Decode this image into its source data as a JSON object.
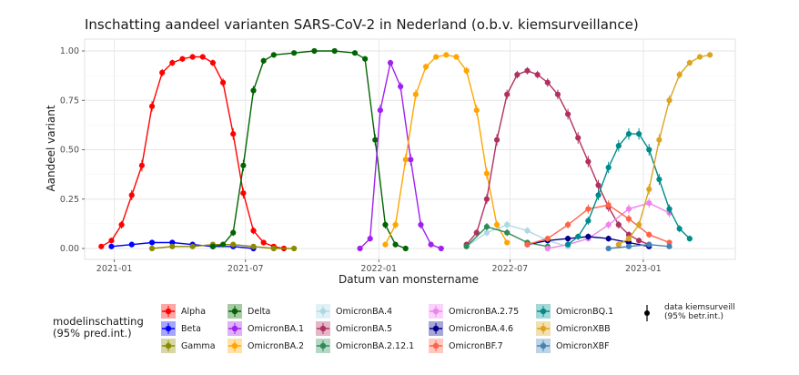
{
  "chart_data": {
    "type": "scatter",
    "title": "Inschatting aandeel varianten SARS-CoV-2 in Nederland (o.b.v. kiemsurveillance)",
    "xlabel": "Datum van monstername",
    "ylabel": "Aandeel variant",
    "x_ticks": [
      "2021-01",
      "2021-07",
      "2022-01",
      "2022-07",
      "2023-01"
    ],
    "y_ticks": [
      "0.00",
      "0.25",
      "0.50",
      "0.75",
      "1.00"
    ],
    "ylim": [
      0,
      1
    ],
    "grid": true,
    "legend_title": "modelinschatting\n(95% pred.int.)",
    "observed_label": "data kiemsurveill\n(95% betr.int.)",
    "legend_placement": "bottom",
    "series": [
      {
        "name": "Alpha",
        "color": "#ff0000",
        "x": [
          "2020-12-14",
          "2020-12-28",
          "2021-01-11",
          "2021-01-25",
          "2021-02-08",
          "2021-02-22",
          "2021-03-08",
          "2021-03-22",
          "2021-04-05",
          "2021-04-19",
          "2021-05-03",
          "2021-05-17",
          "2021-05-31",
          "2021-06-14",
          "2021-06-28",
          "2021-07-12",
          "2021-07-26",
          "2021-08-09",
          "2021-08-23"
        ],
        "values": [
          0.01,
          0.04,
          0.12,
          0.27,
          0.42,
          0.72,
          0.89,
          0.94,
          0.96,
          0.97,
          0.97,
          0.94,
          0.84,
          0.58,
          0.28,
          0.09,
          0.03,
          0.01,
          0.0
        ]
      },
      {
        "name": "Beta",
        "color": "#0000ff",
        "x": [
          "2020-12-28",
          "2021-01-25",
          "2021-02-22",
          "2021-03-22",
          "2021-04-19",
          "2021-05-17",
          "2021-06-14",
          "2021-07-12"
        ],
        "values": [
          0.01,
          0.02,
          0.03,
          0.03,
          0.02,
          0.01,
          0.01,
          0.0
        ]
      },
      {
        "name": "Gamma",
        "color": "#8b8b00",
        "x": [
          "2021-02-22",
          "2021-03-22",
          "2021-04-19",
          "2021-05-17",
          "2021-06-14",
          "2021-07-12",
          "2021-08-09",
          "2021-09-06"
        ],
        "values": [
          0.0,
          0.01,
          0.01,
          0.02,
          0.02,
          0.01,
          0.0,
          0.0
        ]
      },
      {
        "name": "Delta",
        "color": "#006400",
        "x": [
          "2021-05-17",
          "2021-05-31",
          "2021-06-14",
          "2021-06-28",
          "2021-07-12",
          "2021-07-26",
          "2021-08-09",
          "2021-09-06",
          "2021-10-04",
          "2021-11-01",
          "2021-11-29",
          "2021-12-13",
          "2021-12-27",
          "2022-01-10",
          "2022-01-24",
          "2022-02-07"
        ],
        "values": [
          0.01,
          0.02,
          0.08,
          0.42,
          0.8,
          0.95,
          0.98,
          0.99,
          1.0,
          1.0,
          0.99,
          0.96,
          0.55,
          0.12,
          0.02,
          0.0
        ]
      },
      {
        "name": "OmicronBA.1",
        "color": "#a020f0",
        "x": [
          "2021-12-06",
          "2021-12-20",
          "2022-01-03",
          "2022-01-17",
          "2022-01-31",
          "2022-02-14",
          "2022-02-28",
          "2022-03-14",
          "2022-03-28"
        ],
        "values": [
          0.0,
          0.05,
          0.7,
          0.94,
          0.82,
          0.45,
          0.12,
          0.02,
          0.0
        ]
      },
      {
        "name": "OmicronBA.2",
        "color": "#ffa500",
        "x": [
          "2022-01-10",
          "2022-01-24",
          "2022-02-07",
          "2022-02-21",
          "2022-03-07",
          "2022-03-21",
          "2022-04-04",
          "2022-04-18",
          "2022-05-02",
          "2022-05-16",
          "2022-05-30",
          "2022-06-13",
          "2022-06-27"
        ],
        "values": [
          0.02,
          0.12,
          0.45,
          0.78,
          0.92,
          0.97,
          0.98,
          0.97,
          0.9,
          0.7,
          0.38,
          0.12,
          0.03
        ]
      },
      {
        "name": "OmicronBA.4",
        "color": "#add8e6",
        "x": [
          "2022-05-02",
          "2022-05-30",
          "2022-06-27",
          "2022-07-25",
          "2022-08-22",
          "2022-09-19"
        ],
        "values": [
          0.01,
          0.08,
          0.12,
          0.09,
          0.04,
          0.01
        ]
      },
      {
        "name": "OmicronBA.5",
        "color": "#b03060",
        "x": [
          "2022-05-02",
          "2022-05-16",
          "2022-05-30",
          "2022-06-13",
          "2022-06-27",
          "2022-07-11",
          "2022-07-25",
          "2022-08-08",
          "2022-08-22",
          "2022-09-05",
          "2022-09-19",
          "2022-10-03",
          "2022-10-17",
          "2022-10-31",
          "2022-11-14",
          "2022-11-28",
          "2022-12-12",
          "2022-12-26",
          "2023-01-09"
        ],
        "values": [
          0.02,
          0.08,
          0.25,
          0.55,
          0.78,
          0.88,
          0.9,
          0.88,
          0.84,
          0.78,
          0.68,
          0.56,
          0.44,
          0.32,
          0.21,
          0.12,
          0.07,
          0.04,
          0.02
        ]
      },
      {
        "name": "OmicronBA.2.12.1",
        "color": "#2e8b57",
        "x": [
          "2022-05-02",
          "2022-05-30",
          "2022-06-27",
          "2022-07-25",
          "2022-08-22"
        ],
        "values": [
          0.01,
          0.11,
          0.08,
          0.03,
          0.01
        ]
      },
      {
        "name": "OmicronBA.2.75",
        "color": "#ee82ee",
        "x": [
          "2022-08-22",
          "2022-09-19",
          "2022-10-17",
          "2022-11-14",
          "2022-12-12",
          "2023-01-09",
          "2023-02-06"
        ],
        "values": [
          0.0,
          0.02,
          0.05,
          0.12,
          0.2,
          0.23,
          0.18
        ]
      },
      {
        "name": "OmicronBA.4.6",
        "color": "#00008b",
        "x": [
          "2022-07-25",
          "2022-08-22",
          "2022-09-19",
          "2022-10-17",
          "2022-11-14",
          "2022-12-12",
          "2023-01-09"
        ],
        "values": [
          0.02,
          0.04,
          0.05,
          0.06,
          0.05,
          0.03,
          0.01
        ]
      },
      {
        "name": "OmicronBF.7",
        "color": "#ff6347",
        "x": [
          "2022-07-25",
          "2022-08-22",
          "2022-09-19",
          "2022-10-17",
          "2022-11-14",
          "2022-12-12",
          "2023-01-09",
          "2023-02-06"
        ],
        "values": [
          0.02,
          0.05,
          0.12,
          0.2,
          0.22,
          0.15,
          0.07,
          0.03
        ]
      },
      {
        "name": "OmicronBQ.1",
        "color": "#008b8b",
        "x": [
          "2022-09-19",
          "2022-10-03",
          "2022-10-17",
          "2022-10-31",
          "2022-11-14",
          "2022-11-28",
          "2022-12-12",
          "2022-12-26",
          "2023-01-09",
          "2023-01-23",
          "2023-02-06",
          "2023-02-20",
          "2023-03-06"
        ],
        "values": [
          0.02,
          0.06,
          0.14,
          0.27,
          0.41,
          0.52,
          0.58,
          0.58,
          0.5,
          0.35,
          0.2,
          0.1,
          0.05
        ]
      },
      {
        "name": "OmicronXBB",
        "color": "#daa520",
        "x": [
          "2022-11-28",
          "2022-12-12",
          "2022-12-26",
          "2023-01-09",
          "2023-01-23",
          "2023-02-06",
          "2023-02-20",
          "2023-03-06",
          "2023-03-20",
          "2023-04-03"
        ],
        "values": [
          0.02,
          0.05,
          0.12,
          0.3,
          0.55,
          0.75,
          0.88,
          0.94,
          0.97,
          0.98
        ]
      },
      {
        "name": "OmicronXBF",
        "color": "#4682b4",
        "x": [
          "2022-11-14",
          "2022-12-12",
          "2023-01-09",
          "2023-02-06"
        ],
        "values": [
          0.0,
          0.01,
          0.02,
          0.01
        ]
      }
    ]
  }
}
